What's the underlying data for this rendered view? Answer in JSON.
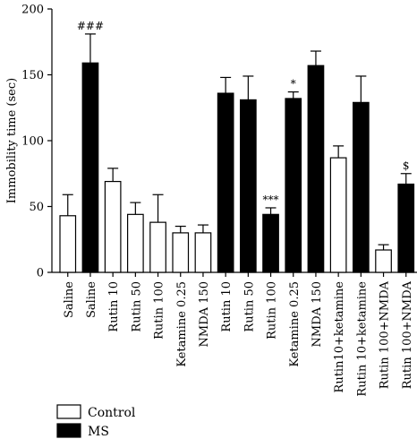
{
  "chart_data": {
    "type": "bar",
    "ylabel": "Immobility time (sec)",
    "xlabel": "",
    "ylim": [
      0,
      200
    ],
    "yticks": [
      0,
      50,
      100,
      150,
      200
    ],
    "categories": [
      "Saline",
      "Saline",
      "Rutin 10",
      "Rutin 50",
      "Rutin 100",
      "Ketamine 0.25",
      "NMDA 150",
      "Rutin 10",
      "Rutin 50",
      "Rutin 100",
      "Ketamine 0.25",
      "NMDA 150",
      "Rutin10+ketamine",
      "Rutin 10+ketamine",
      "Rutin 100+NMDA",
      "Rutin 100+NMDA"
    ],
    "groups": [
      "Control",
      "MS",
      "Control",
      "Control",
      "Control",
      "Control",
      "Control",
      "MS",
      "MS",
      "MS",
      "MS",
      "MS",
      "Control",
      "MS",
      "Control",
      "MS"
    ],
    "values": [
      43,
      159,
      69,
      44,
      38,
      30,
      30,
      136,
      131,
      44,
      132,
      157,
      87,
      129,
      17,
      67
    ],
    "errors": [
      16,
      22,
      10,
      9,
      21,
      5,
      6,
      12,
      18,
      5,
      5,
      11,
      9,
      20,
      4,
      8
    ],
    "annotations": [
      "",
      "###",
      "",
      "",
      "",
      "",
      "",
      "",
      "",
      "***",
      "*",
      "",
      "",
      "",
      "",
      "$"
    ],
    "series": [
      {
        "name": "Control",
        "color": "#ffffff"
      },
      {
        "name": "MS",
        "color": "#000000"
      }
    ],
    "legend_position": "bottom-left"
  }
}
